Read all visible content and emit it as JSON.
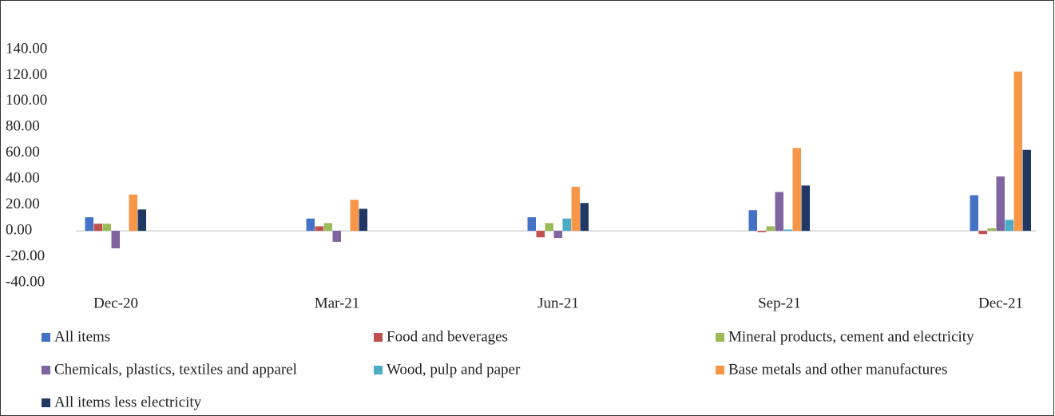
{
  "chart_data": {
    "type": "bar",
    "categories": [
      "Dec-20",
      "Mar-21",
      "Jun-21",
      "Sep-21",
      "Dec-21"
    ],
    "series": [
      {
        "name": "All items",
        "color": "#4472c4",
        "values": [
          10.5,
          9.5,
          10.5,
          16,
          27.5
        ]
      },
      {
        "name": "Food and beverages",
        "color": "#c0504d",
        "values": [
          5.5,
          3.5,
          -5,
          -1,
          -2.5
        ]
      },
      {
        "name": "Mineral products, cement and electricity",
        "color": "#9bbb59",
        "values": [
          5.5,
          6,
          6,
          3.5,
          2
        ]
      },
      {
        "name": "Chemicals, plastics, textiles and apparel",
        "color": "#8064a2",
        "values": [
          -13.5,
          -8.5,
          -5.5,
          30,
          42
        ]
      },
      {
        "name": "Wood, pulp and paper",
        "color": "#4bacc6",
        "values": [
          0,
          0,
          9.5,
          1,
          8.5
        ]
      },
      {
        "name": "Base metals and other manufactures",
        "color": "#f79646",
        "values": [
          28,
          24,
          34,
          64,
          123
        ]
      },
      {
        "name": "All items less electricity",
        "color": "#1f3864",
        "values": [
          16.5,
          17,
          21.5,
          35,
          62.5
        ]
      }
    ],
    "ylim": [
      -40,
      140
    ],
    "yticks": [
      {
        "value": -40,
        "label": "-40.00"
      },
      {
        "value": -20,
        "label": "-20.00"
      },
      {
        "value": 0,
        "label": "0.00"
      },
      {
        "value": 20,
        "label": "20.00"
      },
      {
        "value": 40,
        "label": "40.00"
      },
      {
        "value": 60,
        "label": "60.00"
      },
      {
        "value": 80,
        "label": "80.00"
      },
      {
        "value": 100,
        "label": "100.00"
      },
      {
        "value": 120,
        "label": "120.00"
      },
      {
        "value": 140,
        "label": "140.00"
      }
    ],
    "grid": false,
    "legend": "bottom"
  }
}
